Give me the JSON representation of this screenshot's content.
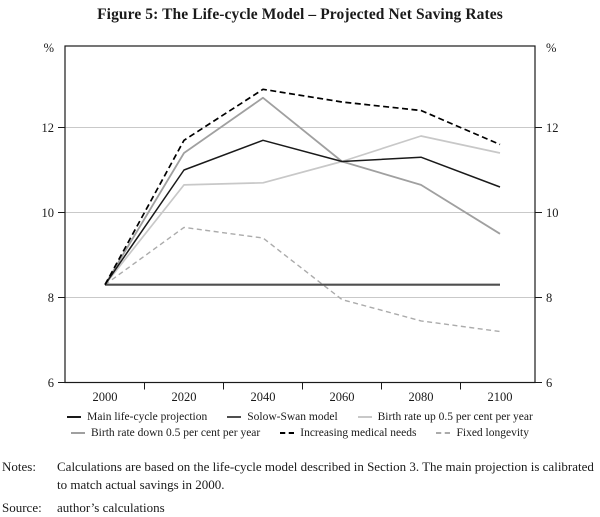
{
  "title": "Figure 5: The Life-cycle Model – Projected Net Saving Rates",
  "chart_data": {
    "type": "line",
    "x": [
      2000,
      2020,
      2040,
      2060,
      2080,
      2100
    ],
    "x_tick_labels": [
      "2000",
      "2020",
      "2040",
      "2060",
      "2080",
      "2100"
    ],
    "x_minor_ticks": [
      2010,
      2030,
      2050,
      2070,
      2090
    ],
    "ylim": [
      6,
      14
    ],
    "y_ticks": [
      6,
      8,
      10,
      12
    ],
    "y_gridlines": [
      8,
      10,
      12
    ],
    "y_unit_left": "%",
    "y_unit_right": "%",
    "grid": "horizontal",
    "legend_position": "bottom",
    "colors": {
      "frame": "#1a1a1a",
      "gridline": "#c9c9c9"
    },
    "series": [
      {
        "id": "main",
        "name": "Main life-cycle projection",
        "color": "#1a1a1a",
        "style": "solid",
        "width": 1.5,
        "dash": null,
        "values": [
          8.3,
          11.0,
          11.7,
          11.2,
          11.3,
          10.6
        ]
      },
      {
        "id": "solow_swan",
        "name": "Solow-Swan model",
        "color": "#4f4f4f",
        "style": "solid",
        "width": 2.2,
        "dash": null,
        "values": [
          8.3,
          8.3,
          8.3,
          8.3,
          8.3,
          8.3
        ]
      },
      {
        "id": "birth_rate_up",
        "name": "Birth rate up 0.5 per cent per year",
        "color": "#c8c8c8",
        "style": "solid",
        "width": 1.7,
        "dash": null,
        "values": [
          8.3,
          10.65,
          10.7,
          11.2,
          11.8,
          11.4
        ]
      },
      {
        "id": "birth_rate_down",
        "name": "Birth rate down 0.5 per cent per year",
        "color": "#a0a0a0",
        "style": "solid",
        "width": 1.8,
        "dash": null,
        "values": [
          8.3,
          11.4,
          12.7,
          11.2,
          10.65,
          9.5
        ]
      },
      {
        "id": "medical_needs",
        "name": "Increasing medical needs",
        "color": "#000000",
        "style": "dashed",
        "width": 1.7,
        "dash": [
          6,
          3.5
        ],
        "values": [
          8.3,
          11.7,
          12.9,
          12.6,
          12.4,
          11.6
        ]
      },
      {
        "id": "fixed_longevity",
        "name": "Fixed longevity",
        "color": "#ababab",
        "style": "dashed",
        "width": 1.4,
        "dash": [
          5,
          3.5
        ],
        "values": [
          8.3,
          9.65,
          9.4,
          7.95,
          7.45,
          7.2
        ]
      }
    ],
    "legend_rows": [
      [
        0,
        1,
        2
      ],
      [
        3,
        4,
        5
      ]
    ],
    "draw_order": [
      2,
      5,
      3,
      1,
      0,
      4
    ]
  },
  "notes": {
    "label": "Notes:",
    "text": "Calculations are based on the life-cycle model described in Section 3. The main projection is calibrated to match actual savings in 2000."
  },
  "source": {
    "label": "Source:",
    "text": "author’s calculations"
  }
}
